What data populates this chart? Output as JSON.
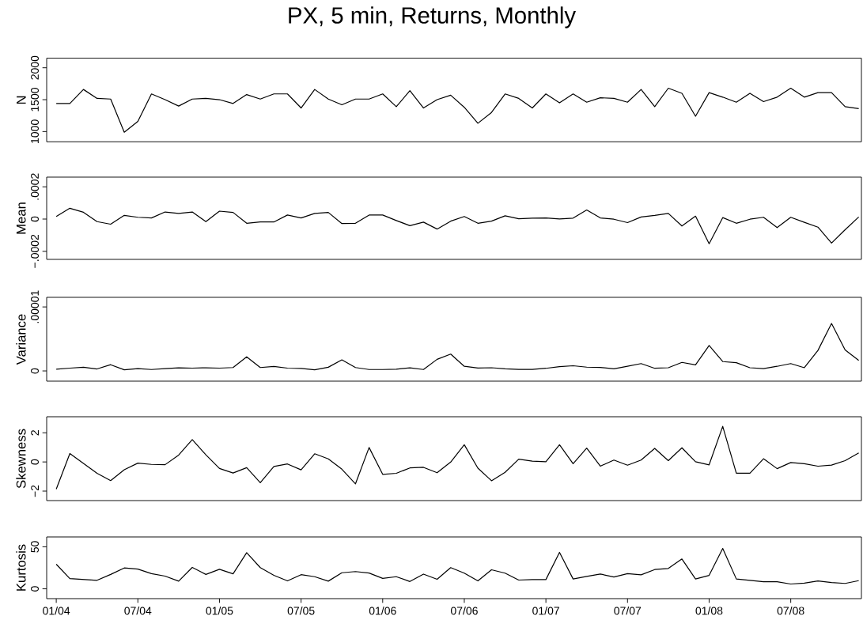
{
  "chart_data": [
    {
      "type": "line",
      "title": "PX, 5 min, Returns, Monthly",
      "ylabel": "N",
      "tick_labels": "y",
      "xlim": [
        "2003-12-10",
        "2008-12-07"
      ],
      "ylim": [
        840,
        2150
      ],
      "yticks": [
        1000,
        1500,
        2000
      ],
      "color": "#000000",
      "x": [
        "2004-01",
        "2004-02",
        "2004-03",
        "2004-04",
        "2004-05",
        "2004-06",
        "2004-07",
        "2004-08",
        "2004-09",
        "2004-10",
        "2004-11",
        "2004-12",
        "2005-01",
        "2005-02",
        "2005-03",
        "2005-04",
        "2005-05",
        "2005-06",
        "2005-07",
        "2005-08",
        "2005-09",
        "2005-10",
        "2005-11",
        "2005-12",
        "2006-01",
        "2006-02",
        "2006-03",
        "2006-04",
        "2006-05",
        "2006-06",
        "2006-07",
        "2006-08",
        "2006-09",
        "2006-10",
        "2006-11",
        "2006-12",
        "2007-01",
        "2007-02",
        "2007-03",
        "2007-04",
        "2007-05",
        "2007-06",
        "2007-07",
        "2007-08",
        "2007-09",
        "2007-10",
        "2007-11",
        "2007-12",
        "2008-01",
        "2008-02",
        "2008-03",
        "2008-04",
        "2008-05",
        "2008-06",
        "2008-07",
        "2008-08",
        "2008-09",
        "2008-10",
        "2008-11",
        "2008-12"
      ],
      "values": [
        1440,
        1440,
        1660,
        1520,
        1510,
        990,
        1160,
        1590,
        1500,
        1400,
        1510,
        1520,
        1500,
        1440,
        1580,
        1510,
        1590,
        1590,
        1370,
        1660,
        1510,
        1420,
        1510,
        1510,
        1590,
        1390,
        1640,
        1370,
        1500,
        1570,
        1380,
        1130,
        1300,
        1590,
        1520,
        1370,
        1590,
        1450,
        1590,
        1460,
        1530,
        1520,
        1460,
        1660,
        1390,
        1680,
        1600,
        1240,
        1610,
        1540,
        1460,
        1600,
        1470,
        1540,
        1680,
        1540,
        1610,
        1610,
        1390,
        1360
      ]
    },
    {
      "type": "line",
      "ylabel": "Mean",
      "tick_labels": "y",
      "xlim": [
        "2003-12-10",
        "2008-12-07"
      ],
      "ylim": [
        -0.00025,
        0.00026
      ],
      "yticks": [
        {
          "value": -0.0002,
          "label": "−.0002"
        },
        0,
        {
          "value": 0.0002,
          "label": ".0002"
        }
      ],
      "color": "#000000",
      "x": [
        "2004-01",
        "2004-02",
        "2004-03",
        "2004-04",
        "2004-05",
        "2004-06",
        "2004-07",
        "2004-08",
        "2004-09",
        "2004-10",
        "2004-11",
        "2004-12",
        "2005-01",
        "2005-02",
        "2005-03",
        "2005-04",
        "2005-05",
        "2005-06",
        "2005-07",
        "2005-08",
        "2005-09",
        "2005-10",
        "2005-11",
        "2005-12",
        "2006-01",
        "2006-02",
        "2006-03",
        "2006-04",
        "2006-05",
        "2006-06",
        "2006-07",
        "2006-08",
        "2006-09",
        "2006-10",
        "2006-11",
        "2006-12",
        "2007-01",
        "2007-02",
        "2007-03",
        "2007-04",
        "2007-05",
        "2007-06",
        "2007-07",
        "2007-08",
        "2007-09",
        "2007-10",
        "2007-11",
        "2007-12",
        "2008-01",
        "2008-02",
        "2008-03",
        "2008-04",
        "2008-05",
        "2008-06",
        "2008-07",
        "2008-08",
        "2008-09",
        "2008-10",
        "2008-11",
        "2008-12"
      ],
      "values": [
        1.6e-05,
        6.7e-05,
        4.2e-05,
        -1.6e-05,
        -3.2e-05,
        2.3e-05,
        1.1e-05,
        7e-06,
        4.4e-05,
        3.5e-05,
        4.4e-05,
        -1.6e-05,
        4.9e-05,
        4.1e-05,
        -2.6e-05,
        -1.8e-05,
        -1.8e-05,
        2.5e-05,
        7e-06,
        3.5e-05,
        4.1e-05,
        -2.8e-05,
        -2.6e-05,
        2.5e-05,
        2.5e-05,
        -9e-06,
        -4.1e-05,
        -1.9e-05,
        -6.2e-05,
        -1.3e-05,
        1.6e-05,
        -2.6e-05,
        -1.3e-05,
        2e-05,
        2e-06,
        6e-06,
        7e-06,
        1e-06,
        6e-06,
        5.6e-05,
        7e-06,
        -1e-06,
        -2.2e-05,
        1.3e-05,
        2.3e-05,
        3.5e-05,
        -4.3e-05,
        1.8e-05,
        -0.000153,
        9e-06,
        -2.6e-05,
        -1e-06,
        1.1e-05,
        -5.3e-05,
        1.1e-05,
        -2e-05,
        -5e-05,
        -0.000149,
        -6.6e-05,
        1.3e-05
      ]
    },
    {
      "type": "line",
      "ylabel": "Variance",
      "tick_labels": "y",
      "xlim": [
        "2003-12-10",
        "2008-12-07"
      ],
      "ylim": [
        -1.6e-06,
        1.15e-05
      ],
      "yticks": [
        0,
        {
          "value": 1e-05,
          "label": ".00001"
        }
      ],
      "color": "#000000",
      "x": [
        "2004-01",
        "2004-02",
        "2004-03",
        "2004-04",
        "2004-05",
        "2004-06",
        "2004-07",
        "2004-08",
        "2004-09",
        "2004-10",
        "2004-11",
        "2004-12",
        "2005-01",
        "2005-02",
        "2005-03",
        "2005-04",
        "2005-05",
        "2005-06",
        "2005-07",
        "2005-08",
        "2005-09",
        "2005-10",
        "2005-11",
        "2005-12",
        "2006-01",
        "2006-02",
        "2006-03",
        "2006-04",
        "2006-05",
        "2006-06",
        "2006-07",
        "2006-08",
        "2006-09",
        "2006-10",
        "2006-11",
        "2006-12",
        "2007-01",
        "2007-02",
        "2007-03",
        "2007-04",
        "2007-05",
        "2007-06",
        "2007-07",
        "2007-08",
        "2007-09",
        "2007-10",
        "2007-11",
        "2007-12",
        "2008-01",
        "2008-02",
        "2008-03",
        "2008-04",
        "2008-05",
        "2008-06",
        "2008-07",
        "2008-08",
        "2008-09",
        "2008-10",
        "2008-11",
        "2008-12"
      ],
      "values": [
        2.7e-07,
        4.4e-07,
        5.8e-07,
        3.1e-07,
        9.7e-07,
        1.8e-07,
        3.5e-07,
        2.2e-07,
        3.5e-07,
        4.9e-07,
        4.4e-07,
        4.9e-07,
        4.4e-07,
        5.3e-07,
        2.21e-06,
        5.3e-07,
        7.1e-07,
        4.4e-07,
        4e-07,
        1.8e-07,
        5.8e-07,
        1.73e-06,
        5.3e-07,
        2.2e-07,
        2.2e-07,
        2.7e-07,
        4.9e-07,
        2.2e-07,
        1.81e-06,
        2.63e-06,
        7.2e-07,
        4.6e-07,
        5e-07,
        3.3e-07,
        2.4e-07,
        2.4e-07,
        4.1e-07,
        6.8e-07,
        8.1e-07,
        5.9e-07,
        5.4e-07,
        3.3e-07,
        7.2e-07,
        1.15e-06,
        4.1e-07,
        5e-07,
        1.33e-06,
        9.4e-07,
        3.98e-06,
        1.46e-06,
        1.28e-06,
        5e-07,
        3.7e-07,
        7.2e-07,
        1.15e-06,
        5e-07,
        3.2e-06,
        7.42e-06,
        3.29e-06,
        1.63e-06
      ]
    },
    {
      "type": "line",
      "ylabel": "Skewness",
      "tick_labels": "y",
      "xlim": [
        "2003-12-10",
        "2008-12-07"
      ],
      "ylim": [
        -2.65,
        3.1
      ],
      "yticks": [
        {
          "value": -2,
          "label": "−2"
        },
        0,
        2
      ],
      "color": "#000000",
      "x": [
        "2004-01",
        "2004-02",
        "2004-03",
        "2004-04",
        "2004-05",
        "2004-06",
        "2004-07",
        "2004-08",
        "2004-09",
        "2004-10",
        "2004-11",
        "2004-12",
        "2005-01",
        "2005-02",
        "2005-03",
        "2005-04",
        "2005-05",
        "2005-06",
        "2005-07",
        "2005-08",
        "2005-09",
        "2005-10",
        "2005-11",
        "2005-12",
        "2006-01",
        "2006-02",
        "2006-03",
        "2006-04",
        "2006-05",
        "2006-06",
        "2006-07",
        "2006-08",
        "2006-09",
        "2006-10",
        "2006-11",
        "2006-12",
        "2007-01",
        "2007-02",
        "2007-03",
        "2007-04",
        "2007-05",
        "2007-06",
        "2007-07",
        "2007-08",
        "2007-09",
        "2007-10",
        "2007-11",
        "2007-12",
        "2008-01",
        "2008-02",
        "2008-03",
        "2008-04",
        "2008-05",
        "2008-06",
        "2008-07",
        "2008-08",
        "2008-09",
        "2008-10",
        "2008-11",
        "2008-12"
      ],
      "values": [
        -1.86,
        0.58,
        -0.1,
        -0.78,
        -1.28,
        -0.54,
        -0.08,
        -0.17,
        -0.19,
        0.47,
        1.53,
        0.49,
        -0.45,
        -0.76,
        -0.39,
        -1.42,
        -0.31,
        -0.14,
        -0.54,
        0.56,
        0.21,
        -0.5,
        -1.5,
        0.99,
        -0.85,
        -0.78,
        -0.41,
        -0.37,
        -0.74,
        -0.01,
        1.18,
        -0.43,
        -1.29,
        -0.71,
        0.19,
        0.05,
        0.01,
        1.18,
        -0.12,
        0.95,
        -0.29,
        0.13,
        -0.22,
        0.13,
        0.93,
        0.09,
        0.97,
        0.01,
        -0.2,
        2.44,
        -0.77,
        -0.77,
        0.22,
        -0.46,
        -0.04,
        -0.12,
        -0.29,
        -0.22,
        0.09,
        0.62
      ]
    },
    {
      "type": "line",
      "ylabel": "Kurtosis",
      "xlim": [
        "2003-12-10",
        "2008-12-07"
      ],
      "ylim": [
        -11.7,
        61.7
      ],
      "yticks": [
        0,
        50
      ],
      "color": "#000000",
      "xticks": [
        {
          "value": "2004-01",
          "label": "01/04"
        },
        {
          "value": "2004-07",
          "label": "07/04"
        },
        {
          "value": "2005-01",
          "label": "01/05"
        },
        {
          "value": "2005-07",
          "label": "07/05"
        },
        {
          "value": "2006-01",
          "label": "01/06"
        },
        {
          "value": "2006-07",
          "label": "07/06"
        },
        {
          "value": "2007-01",
          "label": "01/07"
        },
        {
          "value": "2007-07",
          "label": "07/07"
        },
        {
          "value": "2008-01",
          "label": "01/08"
        },
        {
          "value": "2008-07",
          "label": "07/08"
        }
      ],
      "x": [
        "2004-01",
        "2004-02",
        "2004-03",
        "2004-04",
        "2004-05",
        "2004-06",
        "2004-07",
        "2004-08",
        "2004-09",
        "2004-10",
        "2004-11",
        "2004-12",
        "2005-01",
        "2005-02",
        "2005-03",
        "2005-04",
        "2005-05",
        "2005-06",
        "2005-07",
        "2005-08",
        "2005-09",
        "2005-10",
        "2005-11",
        "2005-12",
        "2006-01",
        "2006-02",
        "2006-03",
        "2006-04",
        "2006-05",
        "2006-06",
        "2006-07",
        "2006-08",
        "2006-09",
        "2006-10",
        "2006-11",
        "2006-12",
        "2007-01",
        "2007-02",
        "2007-03",
        "2007-04",
        "2007-05",
        "2007-06",
        "2007-07",
        "2007-08",
        "2007-09",
        "2007-10",
        "2007-11",
        "2007-12",
        "2008-01",
        "2008-02",
        "2008-03",
        "2008-04",
        "2008-05",
        "2008-06",
        "2008-07",
        "2008-08",
        "2008-09",
        "2008-10",
        "2008-11",
        "2008-12"
      ],
      "values": [
        29.2,
        12.1,
        11.1,
        10.1,
        17.1,
        24.8,
        23.5,
        18.1,
        15.1,
        9.1,
        25.5,
        17.1,
        23.2,
        17.8,
        43.0,
        25.2,
        16.1,
        9.4,
        16.8,
        14.4,
        9.1,
        19.1,
        20.5,
        18.8,
        12.4,
        14.4,
        8.7,
        17.5,
        11.4,
        25.2,
        18.6,
        9.4,
        22.6,
        18.6,
        10.4,
        11.0,
        11.0,
        43.4,
        11.7,
        14.7,
        17.6,
        14.0,
        18.0,
        16.6,
        22.9,
        24.2,
        35.5,
        11.7,
        16.0,
        48.0,
        11.7,
        10.0,
        8.4,
        8.4,
        5.7,
        6.7,
        9.4,
        7.4,
        6.4,
        9.7
      ]
    }
  ]
}
